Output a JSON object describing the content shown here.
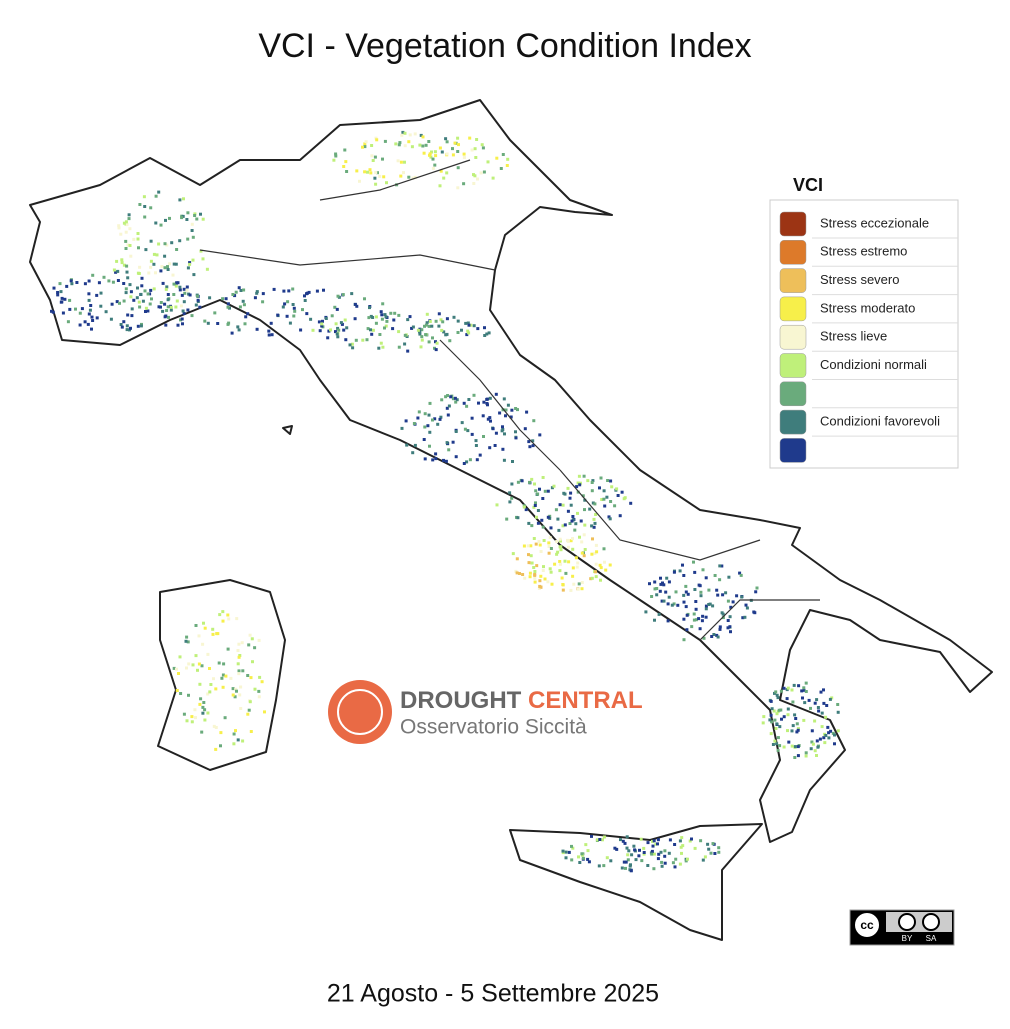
{
  "title": "VCI - Vegetation Condition Index",
  "legend": {
    "title": "VCI",
    "items": [
      {
        "color": "#9c3414",
        "label": "Stress eccezionale"
      },
      {
        "color": "#dd7a2a",
        "label": "Stress estremo"
      },
      {
        "color": "#eebf5a",
        "label": "Stress severo"
      },
      {
        "color": "#f7ef4a",
        "label": "Stress moderato"
      },
      {
        "color": "#f8f6d2",
        "label": "Stress lieve"
      },
      {
        "color": "#bff07a",
        "label": "Condizioni normali"
      },
      {
        "color": "#6aab7c"
      },
      {
        "color": "#3f7d7c",
        "label": "Condizioni favorevoli"
      },
      {
        "color": "#1f3a8c"
      }
    ]
  },
  "logo": {
    "name_1": "DROUGHT",
    "name_2": "CENTRAL",
    "subtitle": "Osservatorio Siccità"
  },
  "license": {
    "cc": "cc",
    "by": "BY",
    "sa": "SA"
  },
  "date": "21 Agosto - 5 Settembre 2025"
}
